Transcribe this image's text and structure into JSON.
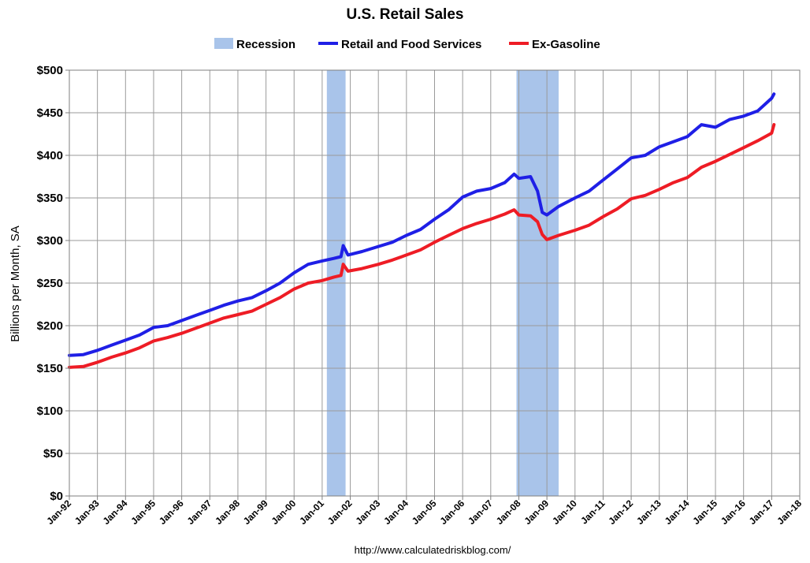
{
  "chart_data": {
    "type": "line",
    "title": "U.S. Retail Sales",
    "ylabel": "Billions per Month, SA",
    "xlabel": "",
    "ylim": [
      0,
      500
    ],
    "xlim": [
      "1992-01",
      "2018-01"
    ],
    "yticks": [
      0,
      50,
      100,
      150,
      200,
      250,
      300,
      350,
      400,
      450,
      500
    ],
    "ytick_labels": [
      "$0",
      "$50",
      "$100",
      "$150",
      "$200",
      "$250",
      "$300",
      "$350",
      "$400",
      "$450",
      "$500"
    ],
    "xtick_labels": [
      "Jan-92",
      "Jan-93",
      "Jan-94",
      "Jan-95",
      "Jan-96",
      "Jan-97",
      "Jan-98",
      "Jan-99",
      "Jan-00",
      "Jan-01",
      "Jan-02",
      "Jan-03",
      "Jan-04",
      "Jan-05",
      "Jan-06",
      "Jan-07",
      "Jan-08",
      "Jan-09",
      "Jan-10",
      "Jan-11",
      "Jan-12",
      "Jan-13",
      "Jan-14",
      "Jan-15",
      "Jan-16",
      "Jan-17",
      "Jan-18"
    ],
    "grid": true,
    "legend_position": "top",
    "recessions": [
      {
        "name": "Recession",
        "start": "2001-03",
        "end": "2001-11"
      },
      {
        "name": "Recession",
        "start": "2007-12",
        "end": "2009-06"
      }
    ],
    "series": [
      {
        "name": "Retail and Food Services",
        "color": "#1f1fe6",
        "x": [
          "1992-01",
          "1992-07",
          "1993-01",
          "1993-07",
          "1994-01",
          "1994-07",
          "1995-01",
          "1995-07",
          "1996-01",
          "1996-07",
          "1997-01",
          "1997-07",
          "1998-01",
          "1998-07",
          "1999-01",
          "1999-07",
          "2000-01",
          "2000-07",
          "2001-01",
          "2001-06",
          "2001-09",
          "2001-10",
          "2001-12",
          "2002-06",
          "2003-01",
          "2003-07",
          "2004-01",
          "2004-07",
          "2005-01",
          "2005-07",
          "2006-01",
          "2006-07",
          "2007-01",
          "2007-07",
          "2007-11",
          "2008-01",
          "2008-06",
          "2008-09",
          "2008-11",
          "2009-01",
          "2009-06",
          "2010-01",
          "2010-07",
          "2011-01",
          "2011-07",
          "2012-01",
          "2012-07",
          "2013-01",
          "2013-07",
          "2014-01",
          "2014-07",
          "2015-01",
          "2015-07",
          "2016-01",
          "2016-07",
          "2017-01",
          "2017-02"
        ],
        "values": [
          165,
          166,
          171,
          177,
          183,
          189,
          198,
          200,
          206,
          212,
          218,
          224,
          229,
          233,
          241,
          250,
          262,
          272,
          276,
          279,
          281,
          294,
          283,
          287,
          293,
          298,
          306,
          313,
          325,
          336,
          351,
          358,
          361,
          368,
          378,
          373,
          375,
          358,
          333,
          330,
          340,
          350,
          358,
          371,
          384,
          397,
          400,
          410,
          416,
          422,
          436,
          433,
          442,
          446,
          452,
          467,
          472
        ]
      },
      {
        "name": "Ex-Gasoline",
        "color": "#ee1c25",
        "x": [
          "1992-01",
          "1992-07",
          "1993-01",
          "1993-07",
          "1994-01",
          "1994-07",
          "1995-01",
          "1995-07",
          "1996-01",
          "1996-07",
          "1997-01",
          "1997-07",
          "1998-01",
          "1998-07",
          "1999-01",
          "1999-07",
          "2000-01",
          "2000-07",
          "2001-01",
          "2001-06",
          "2001-09",
          "2001-10",
          "2001-12",
          "2002-06",
          "2003-01",
          "2003-07",
          "2004-01",
          "2004-07",
          "2005-01",
          "2005-07",
          "2006-01",
          "2006-07",
          "2007-01",
          "2007-07",
          "2007-11",
          "2008-01",
          "2008-06",
          "2008-09",
          "2008-11",
          "2009-01",
          "2009-06",
          "2010-01",
          "2010-07",
          "2011-01",
          "2011-07",
          "2012-01",
          "2012-07",
          "2013-01",
          "2013-07",
          "2014-01",
          "2014-07",
          "2015-01",
          "2015-07",
          "2016-01",
          "2016-07",
          "2017-01",
          "2017-02"
        ],
        "values": [
          151,
          152,
          157,
          163,
          168,
          174,
          182,
          186,
          191,
          197,
          203,
          209,
          213,
          217,
          225,
          233,
          243,
          250,
          253,
          257,
          259,
          272,
          264,
          267,
          272,
          277,
          283,
          289,
          298,
          306,
          314,
          320,
          325,
          331,
          336,
          330,
          329,
          322,
          307,
          301,
          306,
          312,
          318,
          328,
          337,
          349,
          353,
          360,
          368,
          374,
          386,
          393,
          401,
          409,
          417,
          426,
          436
        ]
      }
    ]
  },
  "legend": {
    "recession_label": "Recession",
    "recession_color": "#a9c4ea",
    "series1_label": "Retail and Food Services",
    "series2_label": "Ex-Gasoline"
  },
  "source_text": "http://www.calculatedriskblog.com/"
}
